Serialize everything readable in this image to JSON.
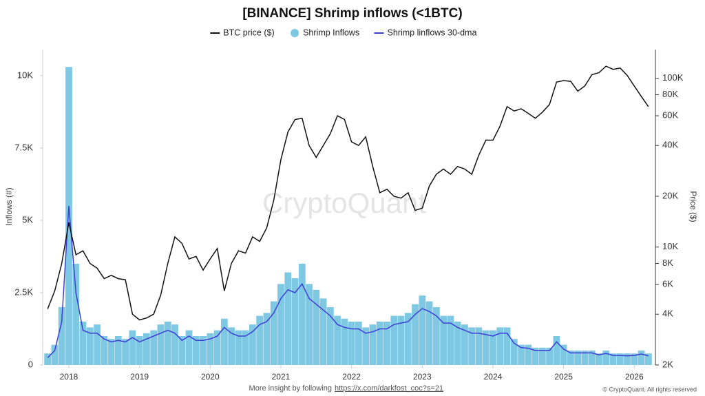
{
  "chart_data": {
    "type": "combo",
    "title": "[BINANCE] Shrimp inflows (<1BTC)",
    "ylabel": "Inflows (#)",
    "y2label": "Price ($)",
    "watermark": "CryptoQuant",
    "footer": "More insight by following",
    "footer_link": "https://x.com/darkfost_coc?s=21",
    "copyright": "© CryptoQuant. All rights reserved",
    "x": [
      2017.7,
      2017.8,
      2017.9,
      2018.0,
      2018.1,
      2018.2,
      2018.3,
      2018.4,
      2018.5,
      2018.6,
      2018.7,
      2018.8,
      2018.9,
      2019.0,
      2019.1,
      2019.2,
      2019.3,
      2019.4,
      2019.5,
      2019.6,
      2019.7,
      2019.8,
      2019.9,
      2020.0,
      2020.1,
      2020.2,
      2020.3,
      2020.4,
      2020.5,
      2020.6,
      2020.7,
      2020.8,
      2020.9,
      2021.0,
      2021.1,
      2021.2,
      2021.3,
      2021.4,
      2021.5,
      2021.6,
      2021.7,
      2021.8,
      2021.9,
      2022.0,
      2022.1,
      2022.2,
      2022.3,
      2022.4,
      2022.5,
      2022.6,
      2022.7,
      2022.8,
      2022.9,
      2023.0,
      2023.1,
      2023.2,
      2023.3,
      2023.4,
      2023.5,
      2023.6,
      2023.7,
      2023.8,
      2023.9,
      2024.0,
      2024.1,
      2024.2,
      2024.3,
      2024.4,
      2024.5,
      2024.6,
      2024.7,
      2024.8,
      2024.9,
      2025.0,
      2025.1,
      2025.2,
      2025.3,
      2025.4,
      2025.5,
      2025.6,
      2025.7,
      2025.8,
      2025.9,
      2026.0,
      2026.1,
      2026.2
    ],
    "series": [
      {
        "name": "BTC price ($)",
        "type": "line",
        "axis": "y2",
        "color": "#111111",
        "values": [
          4300,
          5500,
          8000,
          14000,
          9000,
          9500,
          8000,
          7500,
          6500,
          6800,
          6500,
          6400,
          4000,
          3700,
          3800,
          4000,
          5200,
          8000,
          11500,
          10500,
          8500,
          8800,
          7300,
          8500,
          9800,
          5500,
          8000,
          9500,
          9200,
          11500,
          10800,
          13000,
          19000,
          33000,
          48000,
          57000,
          58000,
          40000,
          34000,
          40000,
          47000,
          60000,
          57000,
          42000,
          40000,
          45000,
          30000,
          21000,
          22000,
          20000,
          19500,
          21000,
          16500,
          17000,
          23000,
          27000,
          29000,
          27000,
          30000,
          29000,
          27000,
          35000,
          43000,
          43000,
          52000,
          68000,
          64000,
          66000,
          62000,
          58000,
          63000,
          70000,
          95000,
          97000,
          96000,
          84000,
          90000,
          105000,
          108000,
          118000,
          113000,
          115000,
          104000,
          90000,
          78000,
          68000
        ]
      },
      {
        "name": "Shrimp Inflows",
        "type": "bar",
        "color": "#7ec8e3",
        "values": [
          400,
          700,
          2000,
          10300,
          3500,
          1500,
          1300,
          1400,
          1000,
          900,
          1000,
          900,
          1200,
          1000,
          1100,
          1200,
          1400,
          1500,
          1400,
          1000,
          1200,
          1000,
          1000,
          1100,
          1200,
          1600,
          1300,
          1200,
          1200,
          1400,
          1700,
          1800,
          2200,
          2800,
          3200,
          3000,
          3500,
          2800,
          2600,
          2300,
          2000,
          1700,
          1600,
          1500,
          1500,
          1300,
          1400,
          1500,
          1500,
          1700,
          1700,
          1800,
          2100,
          2400,
          2200,
          2000,
          1700,
          1700,
          1500,
          1400,
          1300,
          1300,
          1200,
          1200,
          1300,
          1300,
          900,
          700,
          700,
          600,
          600,
          600,
          1000,
          700,
          500,
          500,
          500,
          500,
          400,
          500,
          400,
          400,
          400,
          400,
          500,
          400
        ]
      },
      {
        "name": "Shrimp linflows 30-dma",
        "type": "line",
        "color": "#3d3dd6",
        "values": [
          250,
          500,
          1500,
          5500,
          2500,
          1200,
          1100,
          1100,
          900,
          800,
          850,
          800,
          950,
          800,
          900,
          1000,
          1100,
          1200,
          1100,
          850,
          1000,
          850,
          850,
          900,
          1000,
          1300,
          1100,
          1000,
          1000,
          1150,
          1400,
          1500,
          1800,
          2300,
          2600,
          2500,
          2800,
          2300,
          2100,
          1900,
          1700,
          1400,
          1300,
          1250,
          1250,
          1100,
          1150,
          1250,
          1250,
          1400,
          1450,
          1500,
          1750,
          1950,
          1850,
          1700,
          1450,
          1450,
          1300,
          1200,
          1100,
          1100,
          1050,
          1000,
          1100,
          1100,
          750,
          600,
          580,
          500,
          500,
          500,
          800,
          550,
          420,
          420,
          420,
          420,
          350,
          400,
          330,
          330,
          320,
          330,
          380,
          320
        ]
      }
    ],
    "xlim": [
      2017.63,
      2026.26
    ],
    "xticks": [
      2018,
      2019,
      2020,
      2021,
      2022,
      2023,
      2024,
      2025,
      2026
    ],
    "ylim": [
      0,
      10900
    ],
    "yticks": [
      0,
      {
        "value": 2500,
        "label": "2.5K"
      },
      {
        "value": 5000,
        "label": "5K"
      },
      {
        "value": 7500,
        "label": "7.5K"
      },
      {
        "value": 10000,
        "label": "10K"
      }
    ],
    "y2lim": [
      2000,
      148000
    ],
    "y2log": true,
    "y2ticks": [
      {
        "value": 2000,
        "label": "2K"
      },
      {
        "value": 4000,
        "label": "4K"
      },
      {
        "value": 6000,
        "label": "6K"
      },
      {
        "value": 8000,
        "label": "8K"
      },
      {
        "value": 10000,
        "label": "10K"
      },
      {
        "value": 20000,
        "label": "20K"
      },
      {
        "value": 40000,
        "label": "40K"
      },
      {
        "value": 60000,
        "label": "60K"
      },
      {
        "value": 80000,
        "label": "80K"
      },
      {
        "value": 100000,
        "label": "100K"
      }
    ]
  }
}
